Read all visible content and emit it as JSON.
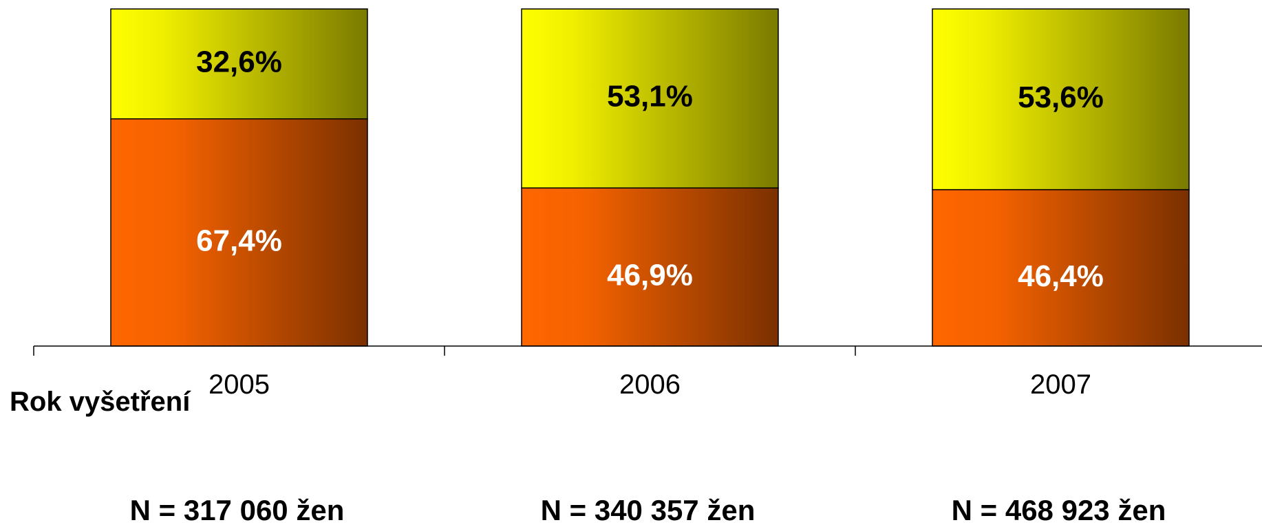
{
  "chart_data": {
    "type": "bar",
    "stacked": true,
    "percent_stacked": true,
    "categories": [
      "2005",
      "2006",
      "2007"
    ],
    "series": [
      {
        "values": [
          67.4,
          46.9,
          46.4
        ],
        "labels": [
          "67,4%",
          "46,9%",
          "46,4%"
        ],
        "color": "#ff6600",
        "label_color": "#ffffff"
      },
      {
        "values": [
          32.6,
          53.1,
          53.6
        ],
        "labels": [
          "32,6%",
          "53,1%",
          "53,6%"
        ],
        "color": "#ffff00",
        "label_color": "#000000"
      }
    ],
    "xlabel": "Rok vyšetření",
    "ylim": [
      0,
      100
    ],
    "grid": false,
    "legend": "none",
    "footer": [
      "N = 317 060 žen",
      "N = 340 357 žen",
      "N = 468 923 žen"
    ]
  }
}
